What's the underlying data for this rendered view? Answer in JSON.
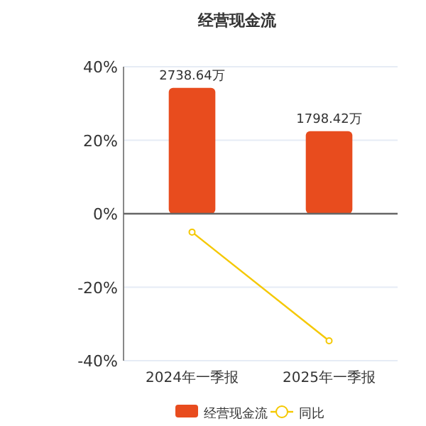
{
  "chart_data": {
    "type": "bar",
    "title": "经营现金流",
    "categories": [
      "2024年一季报",
      "2025年一季报"
    ],
    "series": [
      {
        "name": "经营现金流",
        "axis": "y2",
        "color": "#e84c1e",
        "values": [
          2738.64,
          1798.42
        ],
        "value_labels": [
          "2738.64万",
          "1798.42万"
        ]
      },
      {
        "name": "同比",
        "type": "line",
        "color": "#f5c800",
        "values": [
          -5.0,
          -34.6
        ],
        "marker": "circle"
      }
    ],
    "ylim": [
      -40,
      40
    ],
    "yticks": [
      {
        "value": -40,
        "label": "-40%"
      },
      {
        "value": -20,
        "label": "-20%"
      },
      {
        "value": 0,
        "label": "0%"
      },
      {
        "value": 20,
        "label": "20%"
      },
      {
        "value": 40,
        "label": "40%"
      }
    ],
    "y2lim": [
      -3200,
      3200
    ],
    "grid": "y",
    "legend": "bottom"
  }
}
